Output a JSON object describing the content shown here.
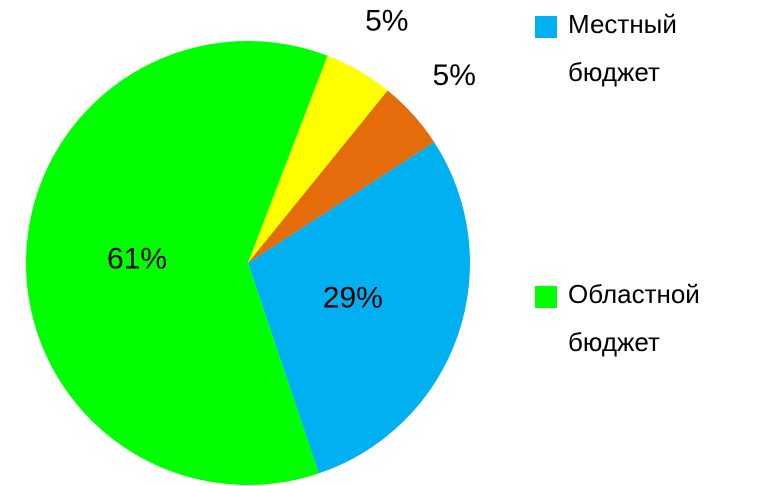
{
  "chart_data": {
    "type": "pie",
    "categories": [
      "Местный бюджет",
      "Областной бюджет",
      null,
      null
    ],
    "values": [
      29,
      61,
      5,
      5
    ],
    "value_labels": [
      "29%",
      "61%",
      "5%",
      "5%"
    ],
    "colors": [
      "#00b0f0",
      "#00ff00",
      "#ffff00",
      "#e46c0a"
    ],
    "legend": "right"
  }
}
